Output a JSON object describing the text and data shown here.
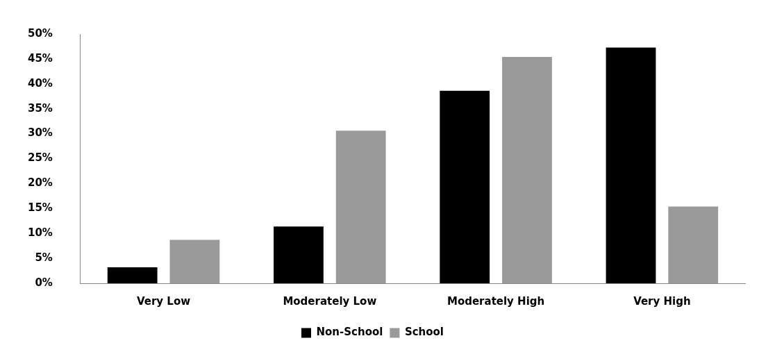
{
  "chart_data": {
    "type": "bar",
    "categories": [
      "Very Low",
      "Moderately Low",
      "Moderately High",
      "Very High"
    ],
    "series": [
      {
        "name": "Non-School",
        "color": "#000000",
        "values": [
          3.2,
          11.4,
          38.6,
          47.3
        ]
      },
      {
        "name": "School",
        "color": "#9a9a9a",
        "values": [
          8.7,
          30.6,
          45.4,
          15.4
        ]
      }
    ],
    "ylim": [
      0,
      50
    ],
    "yticks": [
      {
        "value": 0,
        "label": "0%"
      },
      {
        "value": 5,
        "label": "5%"
      },
      {
        "value": 10,
        "label": "10%"
      },
      {
        "value": 15,
        "label": "15%"
      },
      {
        "value": 20,
        "label": "20%"
      },
      {
        "value": 25,
        "label": "25%"
      },
      {
        "value": 30,
        "label": "30%"
      },
      {
        "value": 35,
        "label": "35%"
      },
      {
        "value": 40,
        "label": "40%"
      },
      {
        "value": 45,
        "label": "45%"
      },
      {
        "value": 50,
        "label": "50%"
      }
    ],
    "grid": false,
    "legend": "bottom"
  }
}
